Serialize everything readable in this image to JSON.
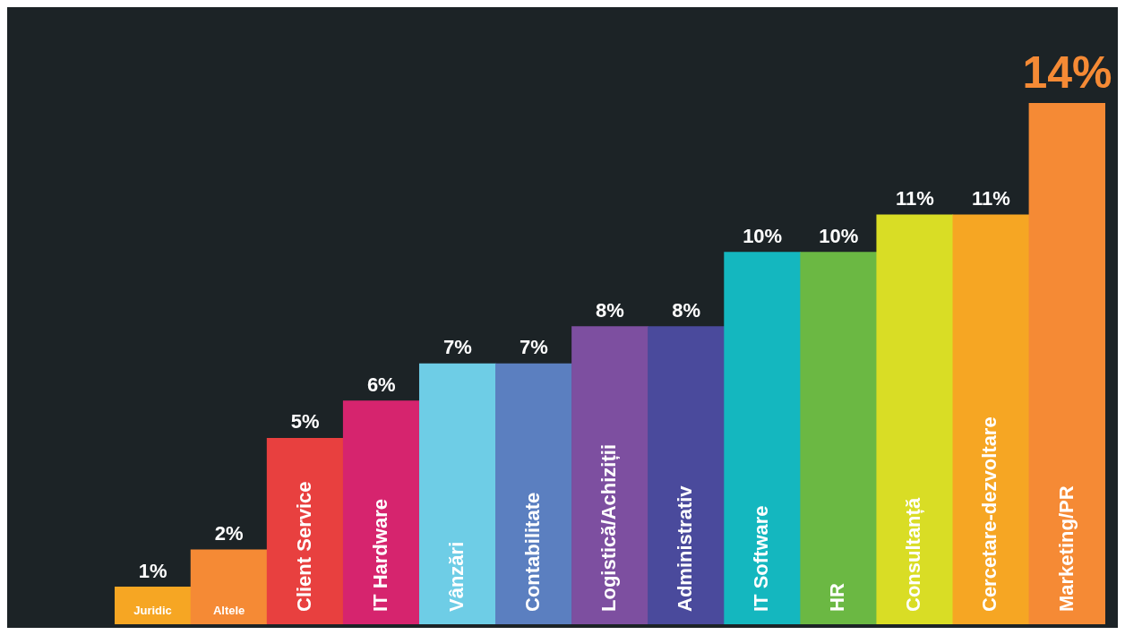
{
  "chart_data": {
    "type": "bar",
    "categories": [
      "Juridic",
      "Altele",
      "Client Service",
      "IT Hardware",
      "Vânzări",
      "Contabilitate",
      "Logistică/Achiziții",
      "Administrativ",
      "IT Software",
      "HR",
      "Consultanță",
      "Cercetare-dezvoltare",
      "Marketing/PR"
    ],
    "values": [
      1,
      2,
      5,
      6,
      7,
      7,
      8,
      8,
      10,
      10,
      11,
      11,
      14
    ],
    "colors": [
      "#f6a623",
      "#f58a35",
      "#e8403f",
      "#d6246e",
      "#6ecde6",
      "#5b7fc0",
      "#7d4fa0",
      "#4a4a9c",
      "#14b7bf",
      "#6bb843",
      "#d9dd25",
      "#f6a623",
      "#f58a35"
    ],
    "value_labels": [
      "1%",
      "2%",
      "5%",
      "6%",
      "7%",
      "7%",
      "8%",
      "8%",
      "10%",
      "10%",
      "11%",
      "11%",
      "14%"
    ],
    "legend": false
  }
}
